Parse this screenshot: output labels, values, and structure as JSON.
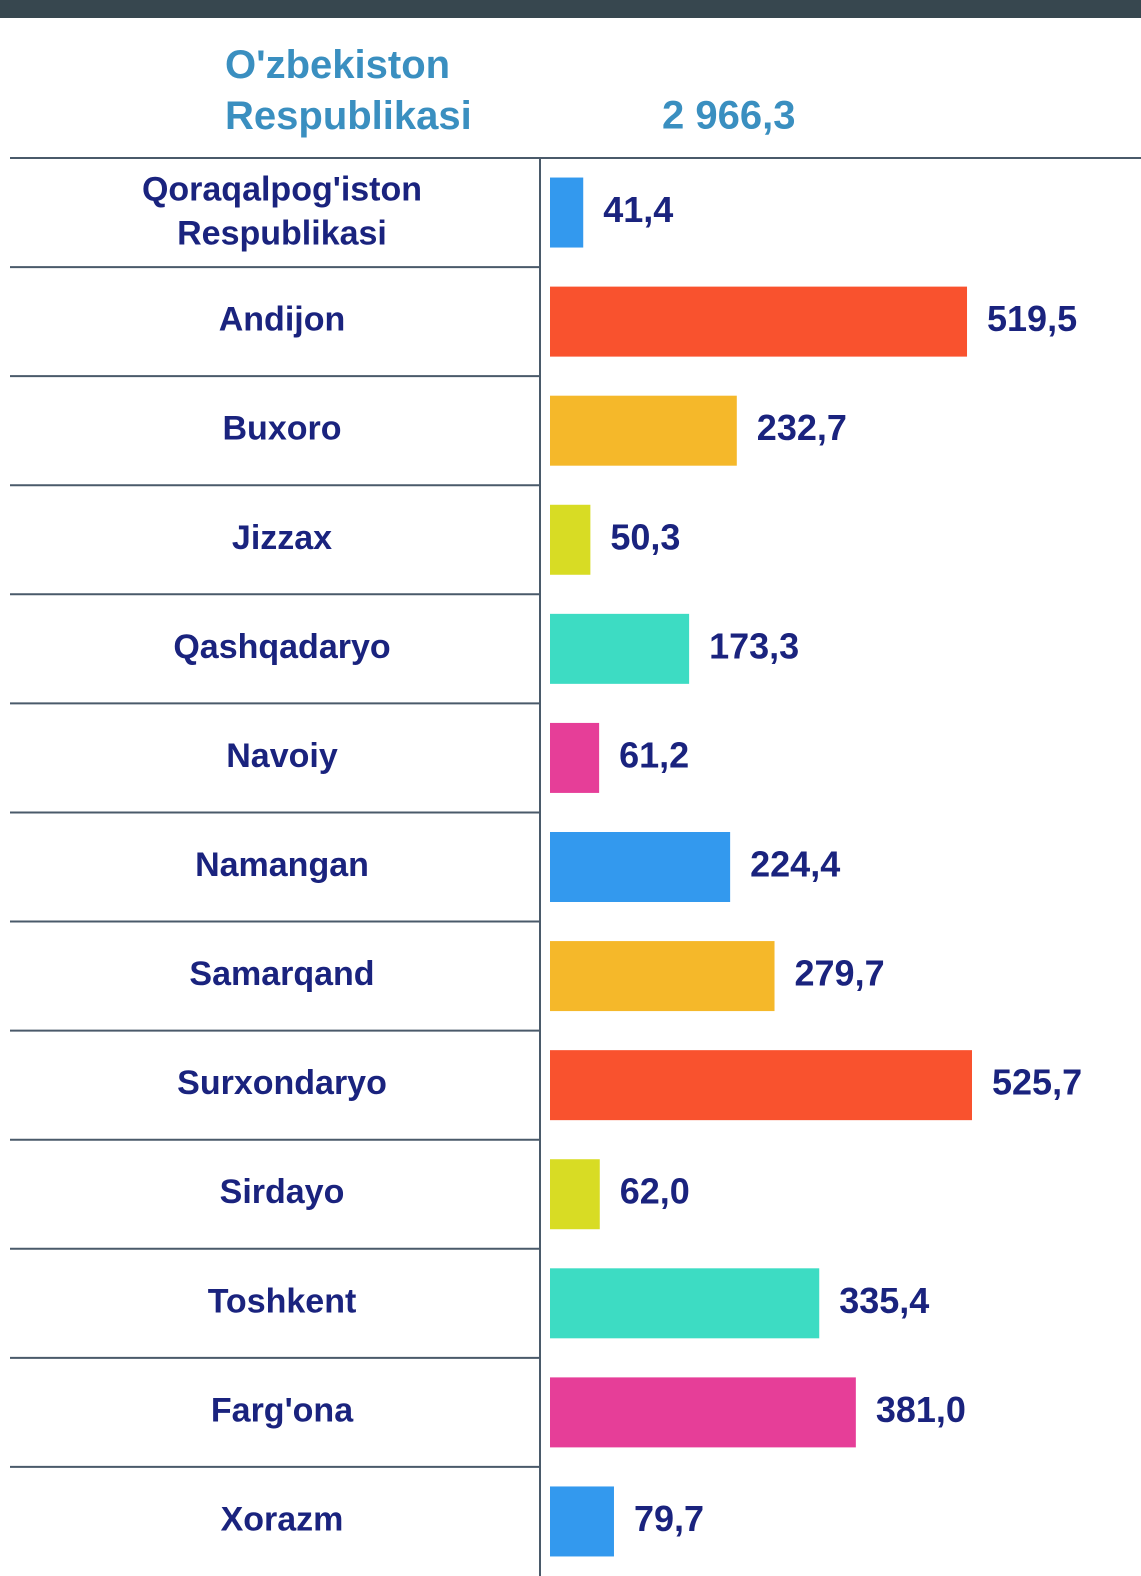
{
  "chart_data": {
    "type": "bar",
    "orientation": "horizontal",
    "total_name": "O'zbekiston Respublikasi",
    "total": {
      "value": 2966.3,
      "label": "2 966,3"
    },
    "categories": [
      "Qoraqalpog'iston Respublikasi",
      "Andijon",
      "Buxoro",
      "Jizzax",
      "Qashqadaryo",
      "Navoiy",
      "Namangan",
      "Samarqand",
      "Surxondaryo",
      "Sirdayo",
      "Toshkent",
      "Farg'ona",
      "Xorazm"
    ],
    "values": [
      41.4,
      519.5,
      232.7,
      50.3,
      173.3,
      61.2,
      224.4,
      279.7,
      525.7,
      62.0,
      335.4,
      381.0,
      79.7
    ],
    "value_labels": [
      "41,4",
      "519,5",
      "232,7",
      "50,3",
      "173,3",
      "61,2",
      "224,4",
      "279,7",
      "525,7",
      "62,0",
      "335,4",
      "381,0",
      "79,7"
    ],
    "colors": [
      "#3399ee",
      "#f9522e",
      "#f5b82a",
      "#d8dc24",
      "#3ddcc3",
      "#e63e98",
      "#3399ee",
      "#f5b82a",
      "#f9522e",
      "#d8dc24",
      "#3ddcc3",
      "#e63e98",
      "#3399ee"
    ]
  }
}
